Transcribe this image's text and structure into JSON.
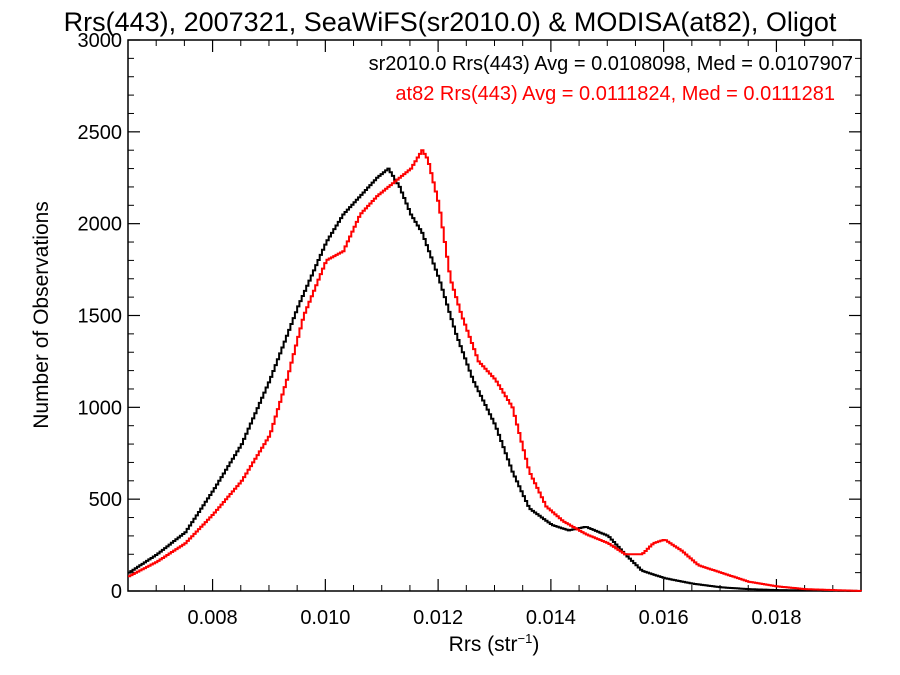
{
  "chart_data": {
    "type": "line",
    "title": "Rrs(443), 2007321, SeaWiFS(sr2010.0) & MODISA(at82), Oligot",
    "xlabel": "Rrs (str",
    "xlabel_sup": "−1",
    "xlabel_end": ")",
    "ylabel": "Number of Observations",
    "xlim": [
      0.0065,
      0.0195
    ],
    "ylim": [
      0,
      3000
    ],
    "xticks": [
      0.008,
      0.01,
      0.012,
      0.014,
      0.016,
      0.018
    ],
    "xtick_labels": [
      "0.008",
      "0.010",
      "0.012",
      "0.014",
      "0.016",
      "0.018"
    ],
    "yticks": [
      0,
      500,
      1000,
      1500,
      2000,
      2500,
      3000
    ],
    "ytick_labels": [
      "0",
      "500",
      "1000",
      "1500",
      "2000",
      "2500",
      "3000"
    ],
    "legend_placement": "top-right",
    "series": [
      {
        "name": "sr2010.0",
        "color": "#000000",
        "legend_text": "sr2010.0 Rrs(443) Avg = 0.0108098, Med = 0.0107907",
        "x": [
          0.0065,
          0.007,
          0.0075,
          0.008,
          0.0085,
          0.009,
          0.0095,
          0.01,
          0.0103,
          0.0106,
          0.0109,
          0.0111,
          0.0113,
          0.0115,
          0.0117,
          0.012,
          0.0123,
          0.0126,
          0.013,
          0.0133,
          0.0136,
          0.014,
          0.0143,
          0.0146,
          0.015,
          0.0153,
          0.0156,
          0.016,
          0.0165,
          0.017,
          0.0175,
          0.018,
          0.0185,
          0.019,
          0.0195
        ],
        "y": [
          100,
          200,
          320,
          550,
          800,
          1150,
          1550,
          1900,
          2050,
          2150,
          2250,
          2300,
          2200,
          2050,
          1950,
          1700,
          1400,
          1150,
          900,
          650,
          450,
          360,
          330,
          350,
          300,
          200,
          110,
          70,
          40,
          20,
          10,
          5,
          3,
          2,
          0
        ]
      },
      {
        "name": "at82",
        "color": "#ff0000",
        "legend_text": "at82 Rrs(443) Avg = 0.0111824, Med = 0.0111281",
        "x": [
          0.0065,
          0.007,
          0.0075,
          0.008,
          0.0085,
          0.009,
          0.0093,
          0.0096,
          0.01,
          0.0103,
          0.0106,
          0.0109,
          0.0111,
          0.0113,
          0.0115,
          0.0117,
          0.0118,
          0.012,
          0.0122,
          0.0124,
          0.0127,
          0.013,
          0.0133,
          0.0136,
          0.0139,
          0.0142,
          0.0146,
          0.015,
          0.0153,
          0.0156,
          0.0158,
          0.016,
          0.0163,
          0.0166,
          0.017,
          0.0175,
          0.018,
          0.0185,
          0.019,
          0.0195
        ],
        "y": [
          80,
          160,
          260,
          420,
          600,
          850,
          1150,
          1500,
          1800,
          1850,
          2050,
          2150,
          2200,
          2250,
          2300,
          2400,
          2350,
          2100,
          1700,
          1500,
          1250,
          1150,
          1000,
          650,
          460,
          380,
          310,
          260,
          200,
          200,
          260,
          280,
          220,
          140,
          100,
          50,
          25,
          10,
          5,
          0
        ]
      }
    ]
  }
}
